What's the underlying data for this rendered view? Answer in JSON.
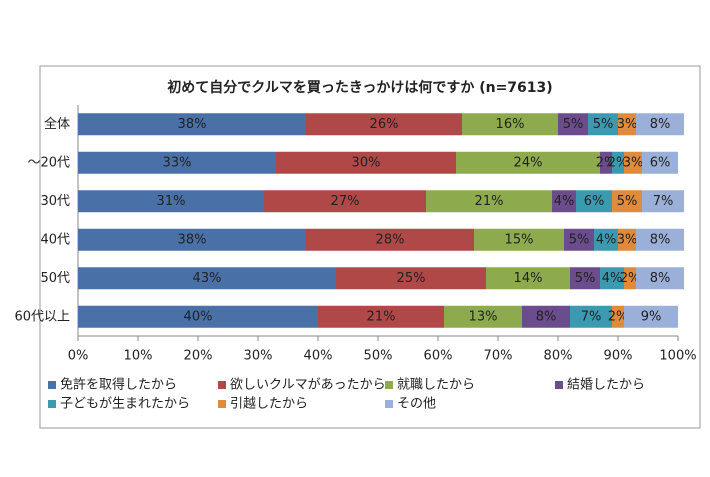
{
  "chart_data": {
    "type": "stacked-bar-horizontal",
    "title": "初めて自分でクルマを買ったきっかけは何ですか (n=7613)",
    "categories": [
      "全体",
      "～20代",
      "30代",
      "40代",
      "50代",
      "60代以上"
    ],
    "series": [
      {
        "name": "免許を取得したから",
        "color": "#4a70a8",
        "values": [
          38,
          33,
          31,
          38,
          43,
          40
        ],
        "value_labels": [
          "38%",
          "33%",
          "31%",
          "38%",
          "43%",
          "40%"
        ]
      },
      {
        "name": "欲しいクルマがあったから",
        "color": "#b04848",
        "values": [
          26,
          30,
          27,
          28,
          25,
          21
        ],
        "value_labels": [
          "26%",
          "30%",
          "27%",
          "28%",
          "25%",
          "21%"
        ]
      },
      {
        "name": "就職したから",
        "color": "#8dab4c",
        "values": [
          16,
          24,
          21,
          15,
          14,
          13
        ],
        "value_labels": [
          "16%",
          "24%",
          "21%",
          "15%",
          "14%",
          "13%"
        ]
      },
      {
        "name": "結婚したから",
        "color": "#6b4c8c",
        "values": [
          5,
          2,
          4,
          5,
          5,
          8
        ],
        "value_labels": [
          "5%",
          "2%",
          "4%",
          "5%",
          "5%",
          "8%"
        ]
      },
      {
        "name": "子どもが生まれたから",
        "color": "#3c9ab0",
        "values": [
          5,
          2,
          6,
          4,
          4,
          7
        ],
        "value_labels": [
          "5%",
          "2%",
          "6%",
          "4%",
          "4%",
          "7%"
        ]
      },
      {
        "name": "引越したから",
        "color": "#e08a3c",
        "values": [
          3,
          3,
          5,
          3,
          2,
          2
        ],
        "value_labels": [
          "3%",
          "3%",
          "5%",
          "3%",
          "2%",
          "2%"
        ]
      },
      {
        "name": "その他",
        "color": "#9bb0d8",
        "values": [
          8,
          6,
          7,
          8,
          8,
          9
        ],
        "value_labels": [
          "8%",
          "6%",
          "7%",
          "8%",
          "8%",
          "9%"
        ]
      }
    ],
    "xlim": [
      0,
      100
    ],
    "xticks": [
      {
        "value": 0,
        "label": "0%"
      },
      {
        "value": 10,
        "label": "10%"
      },
      {
        "value": 20,
        "label": "20%"
      },
      {
        "value": 30,
        "label": "30%"
      },
      {
        "value": 40,
        "label": "40%"
      },
      {
        "value": 50,
        "label": "50%"
      },
      {
        "value": 60,
        "label": "60%"
      },
      {
        "value": 70,
        "label": "70%"
      },
      {
        "value": 80,
        "label": "80%"
      },
      {
        "value": 90,
        "label": "90%"
      },
      {
        "value": 100,
        "label": "100%"
      }
    ],
    "legend": "bottom"
  }
}
